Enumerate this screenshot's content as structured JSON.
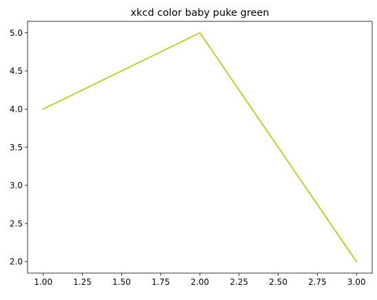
{
  "chart_data": {
    "type": "line",
    "title": "xkcd color baby puke green",
    "xlabel": "",
    "ylabel": "",
    "x": [
      1,
      2,
      3
    ],
    "series": [
      {
        "values": [
          4,
          5,
          2
        ],
        "color": "#b6c406"
      }
    ],
    "xlim": [
      0.9,
      3.1
    ],
    "ylim": [
      1.85,
      5.15
    ],
    "xticks": [
      1.0,
      1.25,
      1.5,
      1.75,
      2.0,
      2.25,
      2.5,
      2.75,
      3.0
    ],
    "xtick_labels": [
      "1.00",
      "1.25",
      "1.50",
      "1.75",
      "2.00",
      "2.25",
      "2.50",
      "2.75",
      "3.00"
    ],
    "yticks": [
      2.0,
      2.5,
      3.0,
      3.5,
      4.0,
      4.5,
      5.0
    ],
    "ytick_labels": [
      "2.0",
      "2.5",
      "3.0",
      "3.5",
      "4.0",
      "4.5",
      "5.0"
    ],
    "grid": false,
    "legend": "none"
  }
}
